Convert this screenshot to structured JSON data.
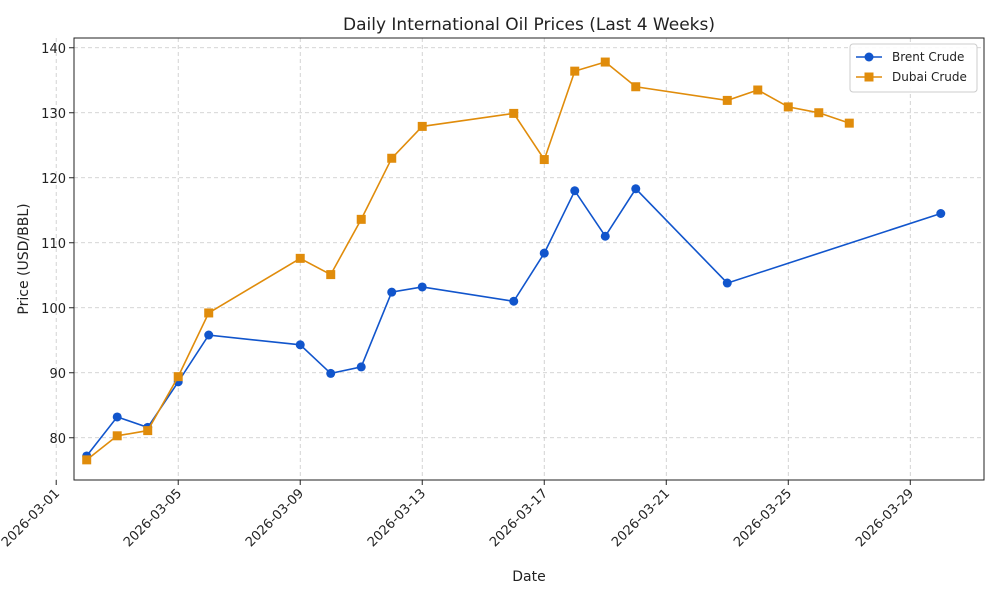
{
  "chart_data": {
    "type": "line",
    "title": "Daily International Oil Prices (Last 4 Weeks)",
    "xlabel": "Date",
    "ylabel": "Price (USD/BBL)",
    "xlim": [
      "2026-02-29T14:00",
      "2026-03-31T10:00"
    ],
    "ylim": [
      73.5,
      141.5
    ],
    "x_ticks": [
      "2026-03-01",
      "2026-03-05",
      "2026-03-09",
      "2026-03-13",
      "2026-03-17",
      "2026-03-21",
      "2026-03-25",
      "2026-03-29"
    ],
    "y_ticks": [
      80,
      90,
      100,
      110,
      120,
      130,
      140
    ],
    "grid": true,
    "legend_position": "top-right",
    "series": [
      {
        "name": "Brent Crude",
        "color": "#1155cc",
        "marker": "circle",
        "points": [
          {
            "x": "2026-03-02",
            "y": 77.2
          },
          {
            "x": "2026-03-03",
            "y": 83.2
          },
          {
            "x": "2026-03-04",
            "y": 81.6
          },
          {
            "x": "2026-03-05",
            "y": 88.6
          },
          {
            "x": "2026-03-06",
            "y": 95.8
          },
          {
            "x": "2026-03-09",
            "y": 94.3
          },
          {
            "x": "2026-03-10",
            "y": 89.9
          },
          {
            "x": "2026-03-11",
            "y": 90.9
          },
          {
            "x": "2026-03-12",
            "y": 102.4
          },
          {
            "x": "2026-03-13",
            "y": 103.2
          },
          {
            "x": "2026-03-16",
            "y": 101.0
          },
          {
            "x": "2026-03-17",
            "y": 108.4
          },
          {
            "x": "2026-03-18",
            "y": 118.0
          },
          {
            "x": "2026-03-19",
            "y": 111.0
          },
          {
            "x": "2026-03-20",
            "y": 118.3
          },
          {
            "x": "2026-03-23",
            "y": 103.8
          },
          {
            "x": "2026-03-30",
            "y": 114.5
          }
        ]
      },
      {
        "name": "Dubai Crude",
        "color": "#e08c0b",
        "marker": "square",
        "points": [
          {
            "x": "2026-03-02",
            "y": 76.6
          },
          {
            "x": "2026-03-03",
            "y": 80.3
          },
          {
            "x": "2026-03-04",
            "y": 81.1
          },
          {
            "x": "2026-03-05",
            "y": 89.4
          },
          {
            "x": "2026-03-06",
            "y": 99.2
          },
          {
            "x": "2026-03-09",
            "y": 107.6
          },
          {
            "x": "2026-03-10",
            "y": 105.1
          },
          {
            "x": "2026-03-11",
            "y": 113.6
          },
          {
            "x": "2026-03-12",
            "y": 123.0
          },
          {
            "x": "2026-03-13",
            "y": 127.9
          },
          {
            "x": "2026-03-16",
            "y": 129.9
          },
          {
            "x": "2026-03-17",
            "y": 122.8
          },
          {
            "x": "2026-03-18",
            "y": 136.4
          },
          {
            "x": "2026-03-19",
            "y": 137.8
          },
          {
            "x": "2026-03-20",
            "y": 134.0
          },
          {
            "x": "2026-03-23",
            "y": 131.9
          },
          {
            "x": "2026-03-24",
            "y": 133.5
          },
          {
            "x": "2026-03-25",
            "y": 130.9
          },
          {
            "x": "2026-03-26",
            "y": 130.0
          },
          {
            "x": "2026-03-27",
            "y": 128.4
          }
        ]
      }
    ]
  }
}
